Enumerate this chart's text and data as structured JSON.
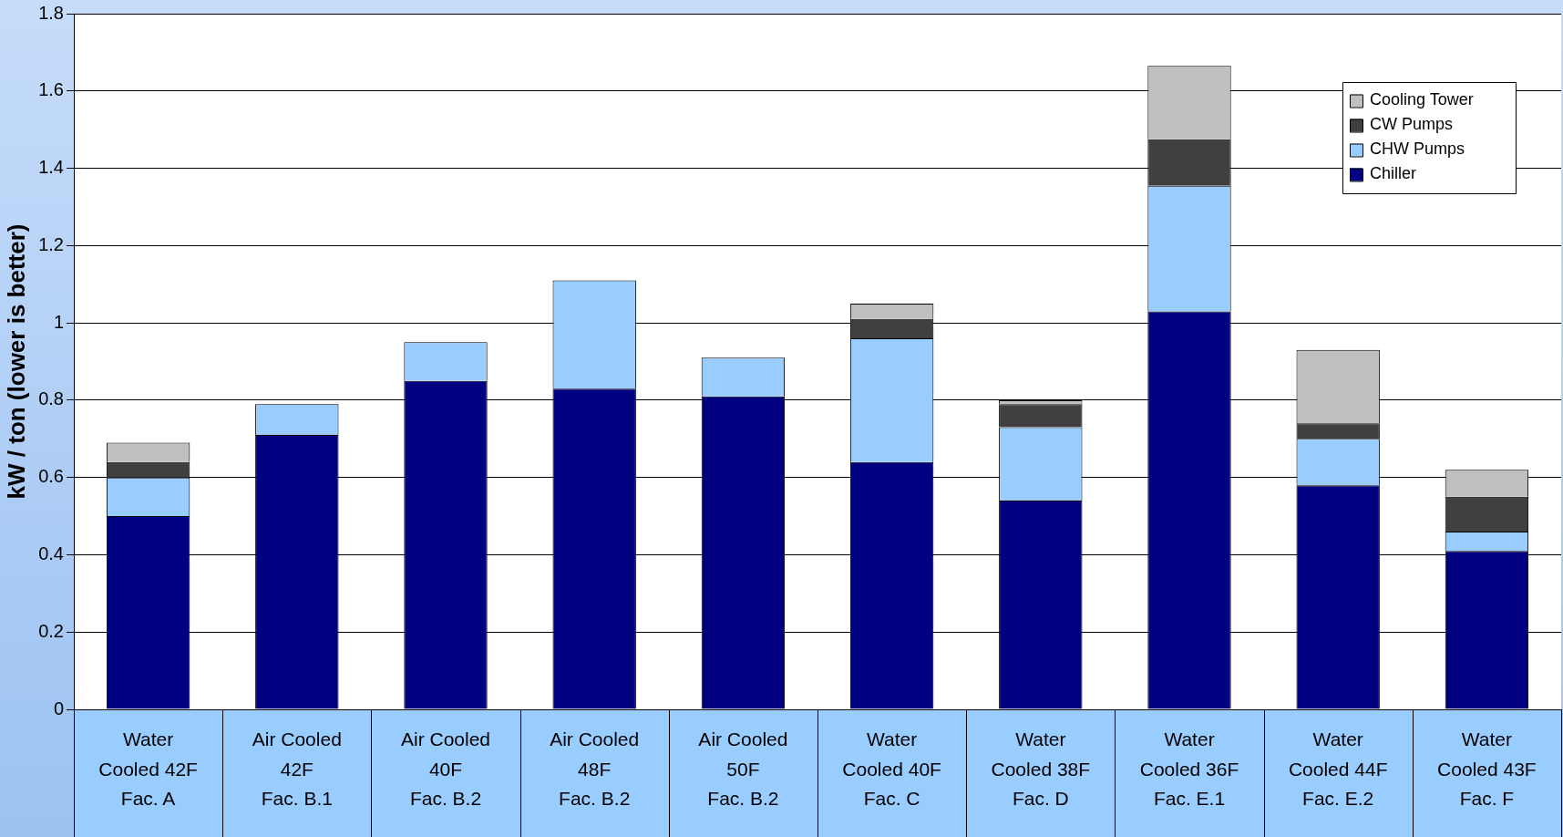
{
  "chart_data": {
    "type": "bar",
    "ylabel": "kW / ton (lower is better)",
    "stacked": true,
    "categories": [
      "Water\nCooled 42F\nFac. A",
      "Air Cooled\n42F\nFac. B.1",
      "Air Cooled\n40F\nFac. B.2",
      "Air Cooled\n48F\nFac. B.2",
      "Air Cooled\n50F\nFac. B.2",
      "Water\nCooled 40F\nFac. C",
      "Water\nCooled 38F\nFac. D",
      "Water\nCooled 36F\nFac. E.1",
      "Water\nCooled 44F\nFac. E.2",
      "Water\nCooled 43F\nFac. F"
    ],
    "series": [
      {
        "name": "Chiller",
        "color": "#000080",
        "values": [
          0.5,
          0.71,
          0.85,
          0.83,
          0.81,
          0.64,
          0.54,
          1.03,
          0.58,
          0.41
        ]
      },
      {
        "name": "CHW Pumps",
        "color": "#99ccff",
        "values": [
          0.1,
          0.08,
          0.1,
          0.28,
          0.1,
          0.32,
          0.19,
          0.325,
          0.12,
          0.05
        ]
      },
      {
        "name": "CW Pumps",
        "color": "#404040",
        "values": [
          0.04,
          null,
          null,
          null,
          null,
          0.05,
          0.06,
          0.12,
          0.04,
          0.09
        ]
      },
      {
        "name": "Cooling Tower",
        "color": "#c0c0c0",
        "values": [
          0.05,
          null,
          null,
          null,
          null,
          0.04,
          0.01,
          0.19,
          0.19,
          0.07
        ]
      }
    ],
    "ylim": [
      0,
      1.8
    ],
    "yticks": [
      0,
      0.2,
      0.4,
      0.6,
      0.8,
      1,
      1.2,
      1.4,
      1.6,
      1.8
    ],
    "grid": "y",
    "legend": "top right"
  }
}
